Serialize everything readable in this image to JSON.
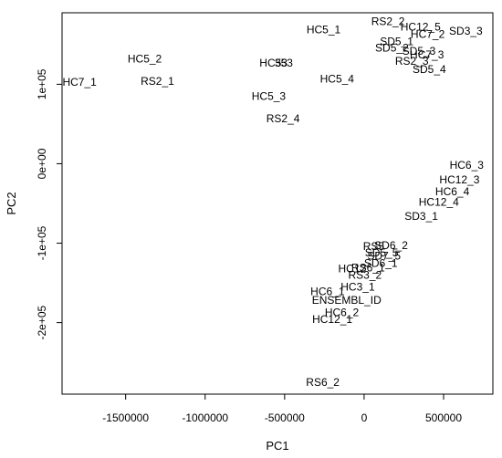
{
  "chart_data": {
    "type": "scatter",
    "title": "",
    "xlabel": "PC1",
    "ylabel": "PC2",
    "xlim": [
      -1900000,
      810000
    ],
    "ylim": [
      -290000,
      190000
    ],
    "xticks": [
      {
        "value": -1500000,
        "label": "-1500000"
      },
      {
        "value": -1000000,
        "label": "-1000000"
      },
      {
        "value": -500000,
        "label": "-500000"
      },
      {
        "value": 0,
        "label": "0"
      },
      {
        "value": 500000,
        "label": "500000"
      }
    ],
    "yticks": [
      {
        "value": 100000,
        "label": "1e+05"
      },
      {
        "value": 0,
        "label": "0e+00"
      },
      {
        "value": -100000,
        "label": "-1e+05"
      },
      {
        "value": -200000,
        "label": "-2e+05"
      }
    ],
    "grid": false,
    "point_labels": [
      {
        "label": "HC7_1",
        "x": -1790000,
        "y": 103000
      },
      {
        "label": "HC5_2",
        "x": -1380000,
        "y": 132000
      },
      {
        "label": "RS2_1",
        "x": -1300000,
        "y": 104000
      },
      {
        "label": "HC5_1",
        "x": -255000,
        "y": 169000
      },
      {
        "label": "HC5_3",
        "x": -600000,
        "y": 85000
      },
      {
        "label": "HC53",
        "x": -570000,
        "y": 127000
      },
      {
        "label": "353",
        "x": -505000,
        "y": 127000
      },
      {
        "label": "HC5_4",
        "x": -170000,
        "y": 107000
      },
      {
        "label": "RS2_4",
        "x": -510000,
        "y": 57000
      },
      {
        "label": "RS2_2",
        "x": 150000,
        "y": 179000
      },
      {
        "label": "HC12_5",
        "x": 355000,
        "y": 172000
      },
      {
        "label": "SD5_1",
        "x": 205000,
        "y": 154000
      },
      {
        "label": "HC7_2",
        "x": 400000,
        "y": 163000
      },
      {
        "label": "SD3_3",
        "x": 640000,
        "y": 167000
      },
      {
        "label": "SD5_2",
        "x": 175000,
        "y": 146000
      },
      {
        "label": "SD5_3",
        "x": 345000,
        "y": 142000
      },
      {
        "label": "HC7_3",
        "x": 395000,
        "y": 137000
      },
      {
        "label": "RS2_3",
        "x": 300000,
        "y": 129000
      },
      {
        "label": "SD5_4",
        "x": 410000,
        "y": 119000
      },
      {
        "label": "HC6_3",
        "x": 645000,
        "y": -2000
      },
      {
        "label": "HC12_3",
        "x": 600000,
        "y": -20000
      },
      {
        "label": "HC6_4",
        "x": 555000,
        "y": -35000
      },
      {
        "label": "HC12_4",
        "x": 470000,
        "y": -48000
      },
      {
        "label": "SD3_1",
        "x": 360000,
        "y": -66000
      },
      {
        "label": "SD6_2",
        "x": 170000,
        "y": -103000
      },
      {
        "label": "RS5",
        "x": 60000,
        "y": -104000
      },
      {
        "label": "SD5_5",
        "x": 110000,
        "y": -112000
      },
      {
        "label": "SD7_5",
        "x": 125000,
        "y": -116000
      },
      {
        "label": "SD6_1",
        "x": 105000,
        "y": -125000
      },
      {
        "label": "HC12",
        "x": -75000,
        "y": -132000
      },
      {
        "label": "RS6_1",
        "x": 25000,
        "y": -131000
      },
      {
        "label": "RS3_2",
        "x": 5000,
        "y": -140000
      },
      {
        "label": "HC3_1",
        "x": -40000,
        "y": -155000
      },
      {
        "label": "HC6_1",
        "x": -230000,
        "y": -161000
      },
      {
        "label": "ENSEMBL_ID",
        "x": -110000,
        "y": -172000
      },
      {
        "label": "HC6_2",
        "x": -140000,
        "y": -187000
      },
      {
        "label": "HC12_1",
        "x": -200000,
        "y": -196000
      },
      {
        "label": "RS6_2",
        "x": -260000,
        "y": -275000
      }
    ]
  }
}
